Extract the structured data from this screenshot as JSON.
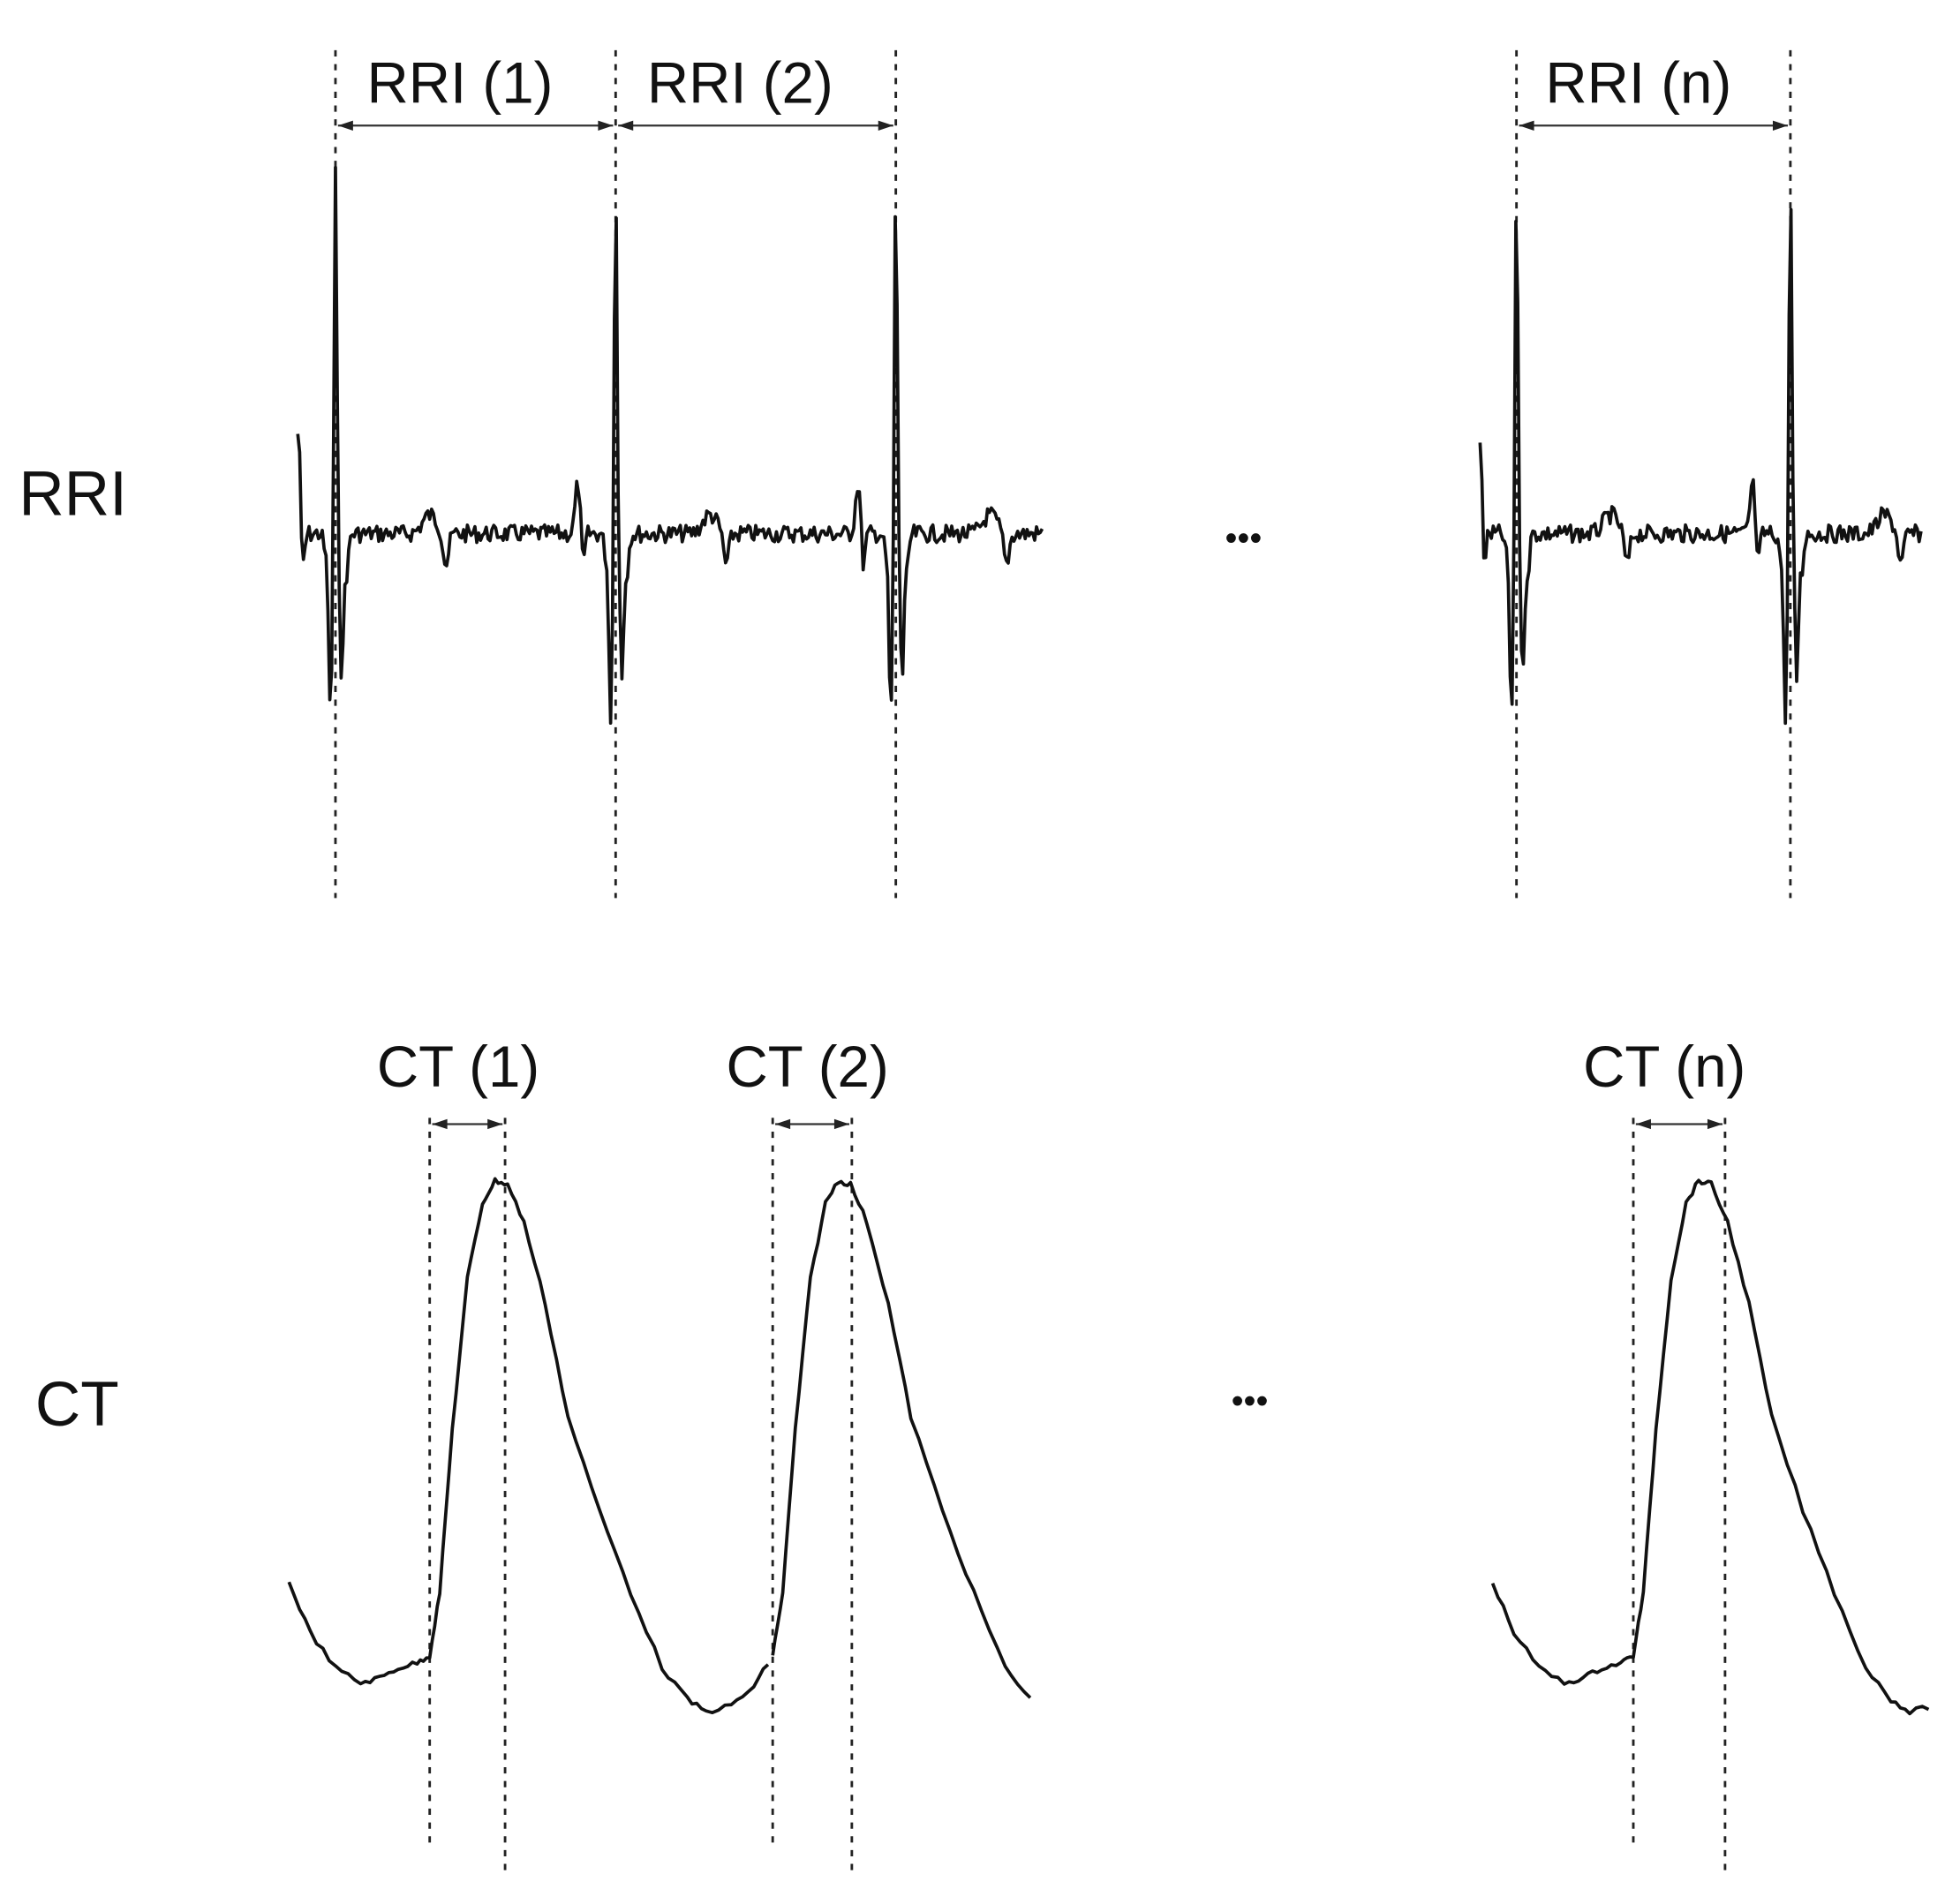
{
  "row_labels": {
    "rri": "RRI",
    "ct": "CT"
  },
  "rri_intervals": [
    "RRI (1)",
    "RRI (2)",
    "RRI (n)"
  ],
  "ct_intervals": [
    "CT (1)",
    "CT (2)",
    "CT (n)"
  ],
  "ellipsis": "•••"
}
